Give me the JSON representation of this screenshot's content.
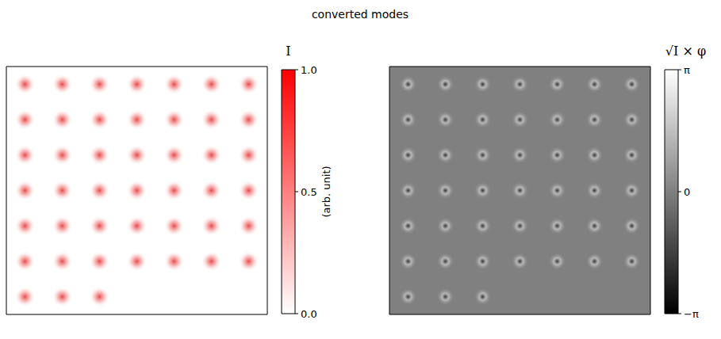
{
  "title": "converted modes",
  "chart_data": [
    {
      "type": "image_grid",
      "tiles": 45,
      "columns": 7,
      "tick_labels": false,
      "colorbar": {
        "title": "I",
        "label": "(arb. unit)",
        "range": [
          0,
          1
        ],
        "ticks": [
          {
            "value": 0,
            "label": "0.0"
          },
          {
            "value": 0.5,
            "label": "0.5"
          },
          {
            "value": 1,
            "label": "1.0"
          }
        ],
        "colors": [
          "#ffffff",
          "#ff0000"
        ]
      }
    },
    {
      "type": "image_grid",
      "tiles": 45,
      "columns": 7,
      "tick_labels": false,
      "colorbar": {
        "title": "√I × φ",
        "range": [
          -3.14159,
          3.14159
        ],
        "ticks": [
          {
            "value": -3.14159,
            "label": "−π"
          },
          0,
          {
            "value": 3.14159,
            "label": "π"
          }
        ],
        "colors": [
          "#000000",
          "#ffffff"
        ]
      }
    }
  ]
}
